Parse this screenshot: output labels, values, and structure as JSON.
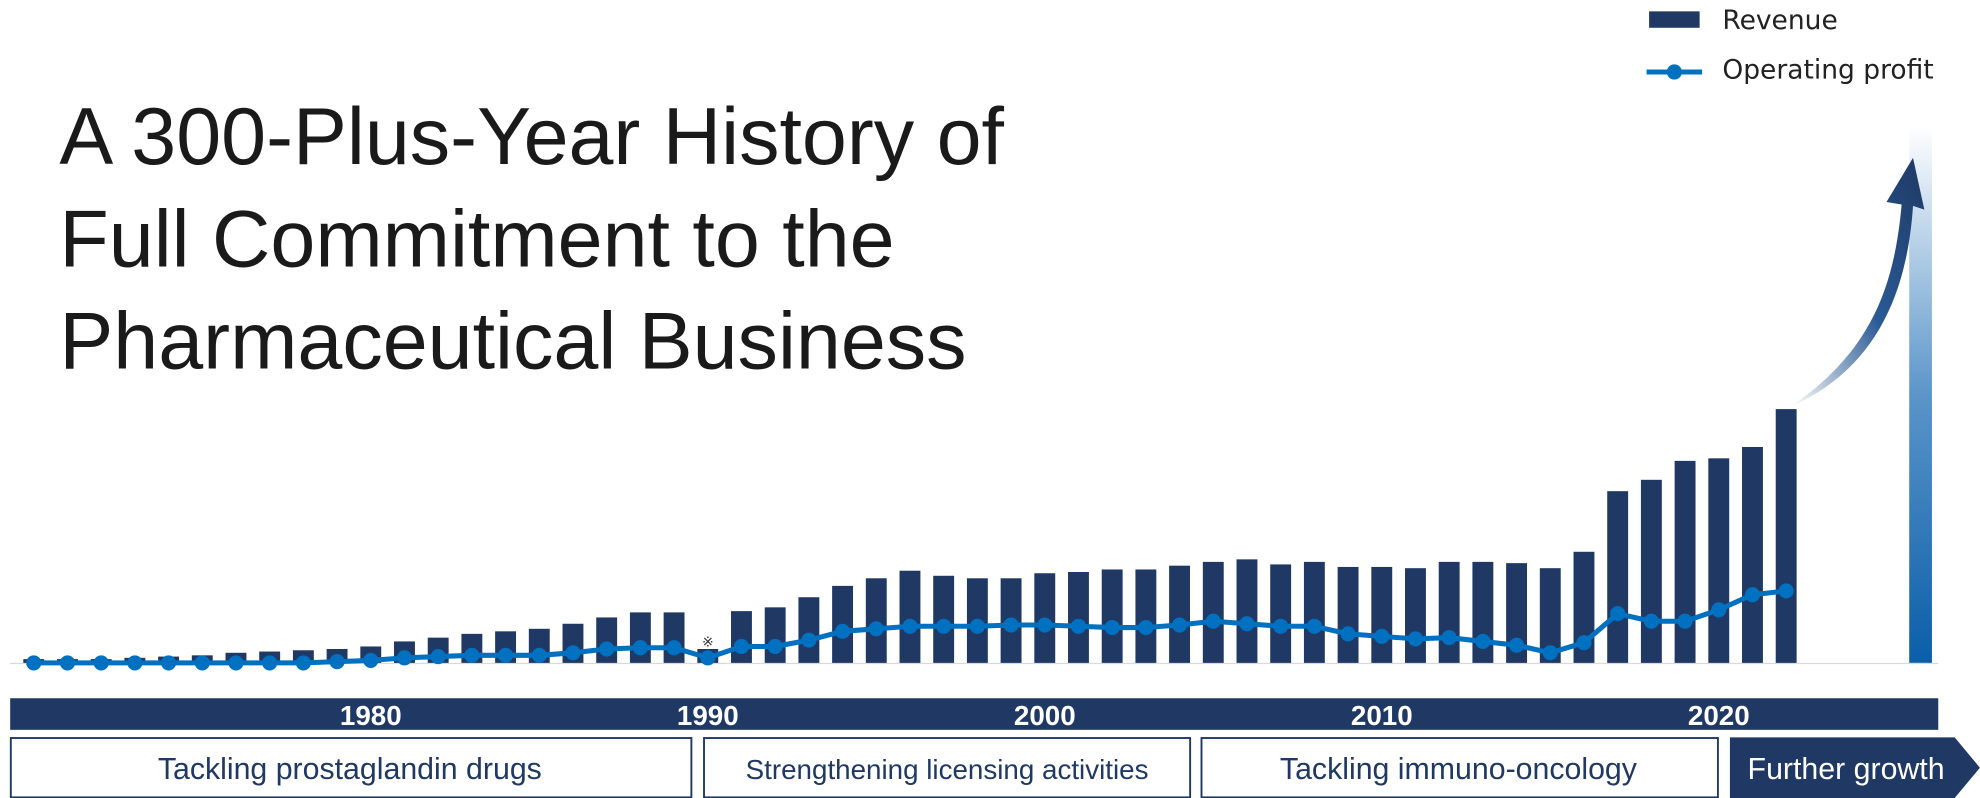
{
  "chart_data": {
    "type": "bar_line",
    "title_lines": [
      "A 300-Plus-Year History of",
      "Full Commitment to the",
      "Pharmaceutical Business"
    ],
    "x": [
      1970,
      1971,
      1972,
      1973,
      1974,
      1975,
      1976,
      1977,
      1978,
      1979,
      1980,
      1981,
      1982,
      1983,
      1984,
      1985,
      1986,
      1987,
      1988,
      1989,
      1990,
      1991,
      1992,
      1993,
      1994,
      1995,
      1996,
      1997,
      1998,
      1999,
      2000,
      2001,
      2002,
      2003,
      2004,
      2005,
      2006,
      2007,
      2008,
      2009,
      2010,
      2011,
      2012,
      2013,
      2014,
      2015,
      2016,
      2017,
      2018,
      2019,
      2020,
      2021,
      2022
    ],
    "xlim": [
      1969,
      2027
    ],
    "xticks": [
      1980,
      1990,
      2000,
      2010,
      2020
    ],
    "ylim": [
      0,
      210
    ],
    "series": [
      {
        "name": "Revenue",
        "type": "bar",
        "color": "#1f3864",
        "values": [
          3,
          3,
          3,
          4,
          5,
          6,
          8,
          9,
          10,
          11,
          13,
          17,
          20,
          23,
          25,
          27,
          31,
          36,
          40,
          40,
          11,
          41,
          44,
          52,
          61,
          67,
          73,
          69,
          67,
          67,
          71,
          72,
          74,
          74,
          77,
          80,
          82,
          78,
          80,
          76,
          76,
          75,
          80,
          80,
          79,
          75,
          88,
          136,
          145,
          160,
          162,
          171,
          201
        ]
      },
      {
        "name": "Operating profit",
        "type": "line",
        "color": "#0070c0",
        "values": [
          0,
          0,
          0,
          0,
          0,
          0,
          0,
          0,
          0,
          1,
          2,
          4,
          5,
          6,
          6,
          6,
          8,
          11,
          12,
          12,
          4,
          13,
          13,
          18,
          25,
          27,
          29,
          29,
          29,
          30,
          30,
          29,
          28,
          28,
          30,
          33,
          31,
          29,
          29,
          23,
          21,
          19,
          20,
          17,
          14,
          8,
          16,
          39,
          33,
          33,
          42,
          54,
          57
        ]
      }
    ],
    "annotation": "※",
    "phases": [
      "Tackling prostaglandin drugs",
      "Strengthening licensing activities",
      "Tackling immuno-oncology",
      "Further growth"
    ]
  }
}
